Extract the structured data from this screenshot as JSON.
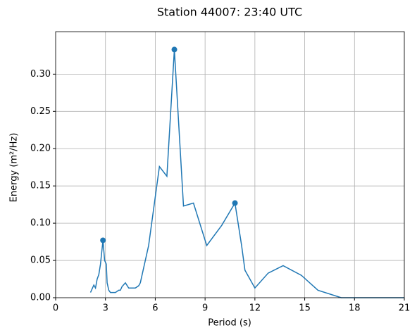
{
  "chart_data": {
    "type": "line",
    "title": "Station 44007: 23:40 UTC",
    "x_label": "Period (s)",
    "y_label": "Energy (m²/Hz)",
    "x": [
      2.1,
      2.3,
      2.4,
      2.5,
      2.6,
      2.7,
      2.85,
      2.95,
      3.05,
      3.1,
      3.2,
      3.3,
      3.6,
      3.8,
      3.9,
      4.0,
      4.2,
      4.4,
      4.8,
      5.0,
      5.1,
      5.6,
      6.25,
      6.7,
      7.15,
      7.7,
      8.3,
      9.1,
      10.0,
      10.8,
      11.2,
      11.4,
      12.0,
      12.8,
      13.7,
      14.8,
      15.8,
      17.2,
      21
    ],
    "series": [
      {
        "color": "#1f77b4",
        "values": [
          0.007,
          0.017,
          0.013,
          0.025,
          0.031,
          0.045,
          0.077,
          0.05,
          0.045,
          0.02,
          0.01,
          0.007,
          0.007,
          0.01,
          0.01,
          0.015,
          0.02,
          0.013,
          0.013,
          0.016,
          0.02,
          0.07,
          0.176,
          0.163,
          0.333,
          0.123,
          0.127,
          0.07,
          0.097,
          0.127,
          0.07,
          0.037,
          0.013,
          0.033,
          0.043,
          0.03,
          0.01,
          0,
          0
        ]
      }
    ],
    "peaks": {
      "color": "#1f77b4",
      "x": [
        2.85,
        7.15,
        10.8
      ],
      "values": [
        0.077,
        0.333,
        0.127
      ]
    },
    "xlim": [
      0,
      21
    ],
    "ylim": [
      0,
      0.357
    ],
    "xticks": [
      0,
      3,
      6,
      9,
      12,
      15,
      18,
      21
    ],
    "yticks": [
      {
        "value": 0,
        "label": "0.00"
      },
      {
        "value": 0.05,
        "label": "0.05"
      },
      {
        "value": 0.1,
        "label": "0.10"
      },
      {
        "value": 0.15,
        "label": "0.15"
      },
      {
        "value": 0.2,
        "label": "0.20"
      },
      {
        "value": 0.25,
        "label": "0.25"
      },
      {
        "value": 0.3,
        "label": "0.30"
      }
    ],
    "grid": true
  }
}
